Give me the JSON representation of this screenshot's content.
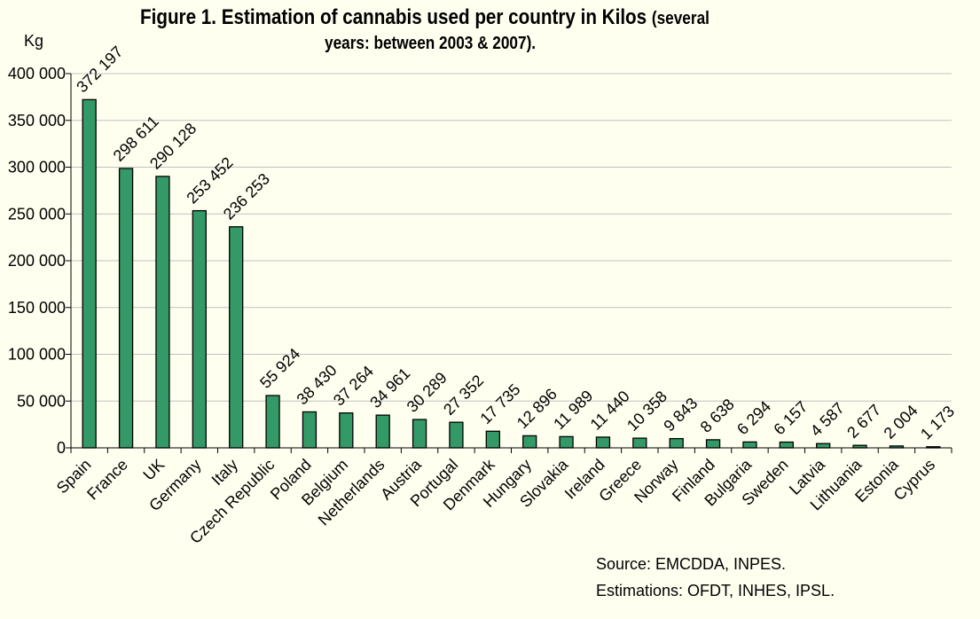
{
  "title": {
    "main": "Figure 1. Estimation of cannabis used per country in Kilos",
    "paren_start": "(several",
    "second_line": "years: between 2003 & 2007)."
  },
  "source_lines": [
    "Source: EMCDDA, INPES.",
    "Estimations: OFDT, INHES, IPSL."
  ],
  "colors": {
    "bar_fill": "#339966",
    "bar_stroke": "#000000",
    "grid": "#c0c0c0",
    "background": "#fffff0"
  },
  "chart_data": {
    "type": "bar",
    "ylabel": "Kg",
    "ylim": [
      0,
      400000
    ],
    "yticks": [
      0,
      50000,
      100000,
      150000,
      200000,
      250000,
      300000,
      350000,
      400000
    ],
    "ytick_labels": [
      "0",
      "50 000",
      "100 000",
      "150 000",
      "200 000",
      "250 000",
      "300 000",
      "350 000",
      "400 000"
    ],
    "grid": true,
    "categories": [
      "Spain",
      "France",
      "UK",
      "Germany",
      "Italy",
      "Czech Republic",
      "Poland",
      "Belgium",
      "Netherlands",
      "Austria",
      "Portugal",
      "Denmark",
      "Hungary",
      "Slovakia",
      "Ireland",
      "Greece",
      "Norway",
      "Finland",
      "Bulgaria",
      "Sweden",
      "Latvia",
      "Lithuania",
      "Estonia",
      "Cyprus"
    ],
    "values": [
      372197,
      298611,
      290128,
      253452,
      236253,
      55924,
      38430,
      37264,
      34961,
      30289,
      27352,
      17735,
      12896,
      11989,
      11440,
      10358,
      9843,
      8638,
      6294,
      6157,
      4587,
      2677,
      2004,
      1173
    ],
    "value_labels": [
      "372 197",
      "298 611",
      "290 128",
      "253 452",
      "236 253",
      "55 924",
      "38 430",
      "37 264",
      "34 961",
      "30 289",
      "27 352",
      "17 735",
      "12 896",
      "11 989",
      "11 440",
      "10 358",
      "9 843",
      "8 638",
      "6 294",
      "6 157",
      "4 587",
      "2 677",
      "2 004",
      "1 173"
    ]
  }
}
